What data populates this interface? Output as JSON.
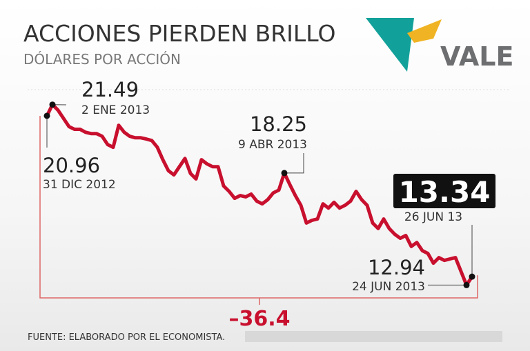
{
  "chart_data": {
    "type": "line",
    "title": "ACCIONES PIERDEN BRILLO",
    "subtitle": "DÓLARES POR ACCIÓN",
    "logo_text": "VALE",
    "source": "FUENTE: ELABORADO POR EL ECONOMISTA.",
    "categories": [
      "31 DIC 2012",
      "2 ENE 2013",
      null,
      null,
      null,
      null,
      null,
      null,
      null,
      null,
      null,
      null,
      null,
      null,
      null,
      null,
      null,
      null,
      null,
      null,
      null,
      null,
      null,
      null,
      null,
      null,
      null,
      null,
      null,
      null,
      null,
      null,
      null,
      null,
      null,
      null,
      null,
      null,
      null,
      null,
      null,
      null,
      null,
      "9 ABR 2013",
      null,
      null,
      null,
      null,
      null,
      null,
      null,
      null,
      null,
      null,
      null,
      null,
      null,
      null,
      null,
      null,
      null,
      null,
      null,
      null,
      null,
      null,
      null,
      null,
      null,
      null,
      null,
      null,
      null,
      null,
      null,
      null,
      "24 JUN 2013",
      "26 JUN 13"
    ],
    "series": [
      {
        "name": null,
        "color": "#c8102e",
        "values": [
          20.96,
          21.49,
          21.23,
          20.84,
          20.45,
          20.32,
          20.32,
          20.18,
          20.12,
          20.12,
          19.99,
          19.6,
          19.47,
          20.51,
          20.18,
          19.99,
          19.92,
          19.92,
          19.86,
          19.79,
          19.47,
          18.88,
          18.36,
          18.16,
          18.55,
          18.94,
          18.23,
          17.97,
          18.88,
          18.68,
          18.55,
          18.55,
          17.64,
          17.38,
          17.05,
          17.18,
          17.12,
          17.25,
          16.92,
          16.79,
          16.99,
          17.31,
          17.44,
          18.25,
          17.7,
          17.18,
          16.72,
          15.88,
          16.01,
          16.07,
          16.79,
          16.59,
          16.86,
          16.59,
          16.72,
          16.92,
          17.38,
          16.99,
          16.72,
          15.88,
          15.62,
          16.07,
          15.62,
          15.35,
          15.16,
          15.29,
          14.77,
          14.96,
          14.57,
          14.44,
          13.98,
          14.24,
          14.11,
          14.18,
          14.24,
          13.59,
          12.94,
          13.34
        ]
      }
    ],
    "change": {
      "value": -36.4,
      "label": "–36.4"
    },
    "ylim": [
      12.3,
      22.2
    ]
  }
}
